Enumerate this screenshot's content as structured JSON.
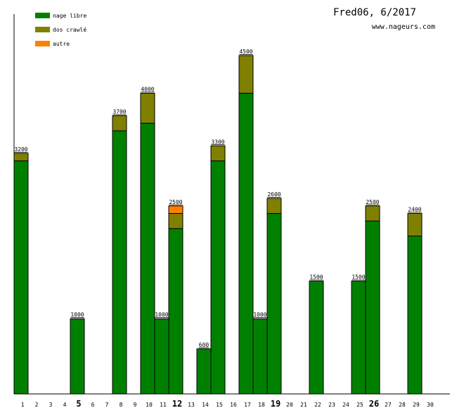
{
  "chart_data": {
    "type": "bar",
    "stacked": true,
    "title": "Fred06, 6/2017",
    "subtitle": "www.nageurs.com",
    "legend_position": "top-left",
    "xlabel": "",
    "ylabel": "",
    "ylim": [
      0,
      4500
    ],
    "categories": [
      "1",
      "2",
      "3",
      "4",
      "5",
      "6",
      "7",
      "8",
      "9",
      "10",
      "11",
      "12",
      "13",
      "14",
      "15",
      "16",
      "17",
      "18",
      "19",
      "20",
      "21",
      "22",
      "23",
      "24",
      "25",
      "26",
      "27",
      "28",
      "29",
      "30"
    ],
    "bold_categories": [
      "5",
      "12",
      "19",
      "26"
    ],
    "series": [
      {
        "name": "nage libre",
        "color": "#008000",
        "values": [
          3100,
          0,
          0,
          0,
          1000,
          0,
          0,
          3500,
          0,
          3600,
          1000,
          2200,
          0,
          600,
          3100,
          0,
          4000,
          1000,
          2400,
          0,
          0,
          1500,
          0,
          0,
          1500,
          2300,
          0,
          0,
          2100,
          0
        ]
      },
      {
        "name": "dos crawlé",
        "color": "#808000",
        "values": [
          100,
          0,
          0,
          0,
          0,
          0,
          0,
          200,
          0,
          400,
          0,
          200,
          0,
          0,
          200,
          0,
          500,
          0,
          200,
          0,
          0,
          0,
          0,
          0,
          0,
          200,
          0,
          0,
          300,
          0
        ]
      },
      {
        "name": "autre",
        "color": "#ff8000",
        "values": [
          0,
          0,
          0,
          0,
          0,
          0,
          0,
          0,
          0,
          0,
          0,
          100,
          0,
          0,
          0,
          0,
          0,
          0,
          0,
          0,
          0,
          0,
          0,
          0,
          0,
          0,
          0,
          0,
          0,
          0
        ]
      }
    ],
    "totals": [
      "3200",
      "",
      "",
      "",
      "1000",
      "",
      "",
      "3700",
      "",
      "4000",
      "1000",
      "2500",
      "",
      "600",
      "3300",
      "",
      "4500",
      "1000",
      "2600",
      "",
      "",
      "1500",
      "",
      "",
      "1500",
      "2500",
      "",
      "",
      "2400",
      ""
    ]
  }
}
